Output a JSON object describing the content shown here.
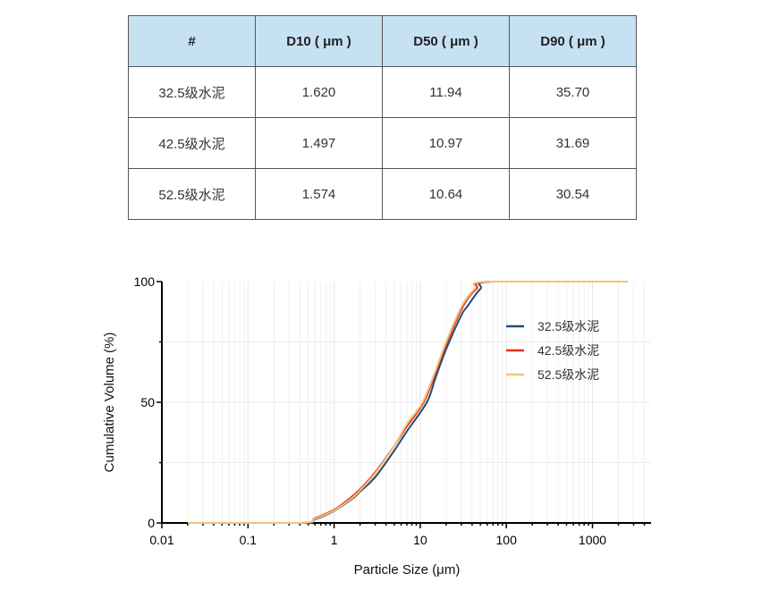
{
  "table": {
    "headers": [
      "#",
      "D10 ( μm )",
      "D50 ( μm )",
      "D90 ( μm )"
    ],
    "rows": [
      [
        "32.5级水泥",
        "1.620",
        "11.94",
        "35.70"
      ],
      [
        "42.5级水泥",
        "1.497",
        "10.97",
        "31.69"
      ],
      [
        "52.5级水泥",
        "1.574",
        "10.64",
        "30.54"
      ]
    ]
  },
  "chart_data": {
    "type": "line",
    "xlabel": "Particle Size (μm)",
    "ylabel": "Cumulative Volume (%)",
    "xscale": "log",
    "xlim": [
      0.01,
      5000
    ],
    "ylim": [
      0,
      100
    ],
    "xticks": [
      "0.01",
      "0.1",
      "1",
      "10",
      "100",
      "1000"
    ],
    "yticks": [
      "0",
      "50",
      "100"
    ],
    "grid": true,
    "legend_position": "right",
    "series": [
      {
        "name": "32.5级水泥",
        "color": "#1f4e79",
        "x": [
          0.02,
          0.4,
          0.6,
          1,
          1.62,
          2,
          3,
          5,
          7,
          11.94,
          15,
          20,
          30,
          35.7,
          50,
          70,
          2600
        ],
        "y": [
          0,
          0,
          1.5,
          5,
          10,
          13,
          19,
          30,
          38,
          50,
          60,
          72,
          86,
          90,
          97,
          100,
          100
        ]
      },
      {
        "name": "42.5级水泥",
        "color": "#e03020",
        "x": [
          0.02,
          0.4,
          0.6,
          1,
          1.497,
          2,
          3,
          5,
          7,
          10.97,
          15,
          20,
          31.69,
          45,
          65,
          2600
        ],
        "y": [
          0,
          0,
          2,
          5.5,
          10,
          14,
          21,
          32,
          40,
          50,
          62,
          74,
          90,
          97,
          100,
          100
        ]
      },
      {
        "name": "52.5级水泥",
        "color": "#f5c27a",
        "x": [
          0.02,
          0.4,
          0.6,
          1,
          1.574,
          2,
          3,
          5,
          7,
          10.64,
          15,
          20,
          30.54,
          43,
          62,
          2600
        ],
        "y": [
          0,
          0,
          1.8,
          5.2,
          10,
          13.5,
          20.5,
          32,
          41,
          50,
          63,
          75,
          90,
          97,
          100,
          100
        ]
      }
    ]
  }
}
